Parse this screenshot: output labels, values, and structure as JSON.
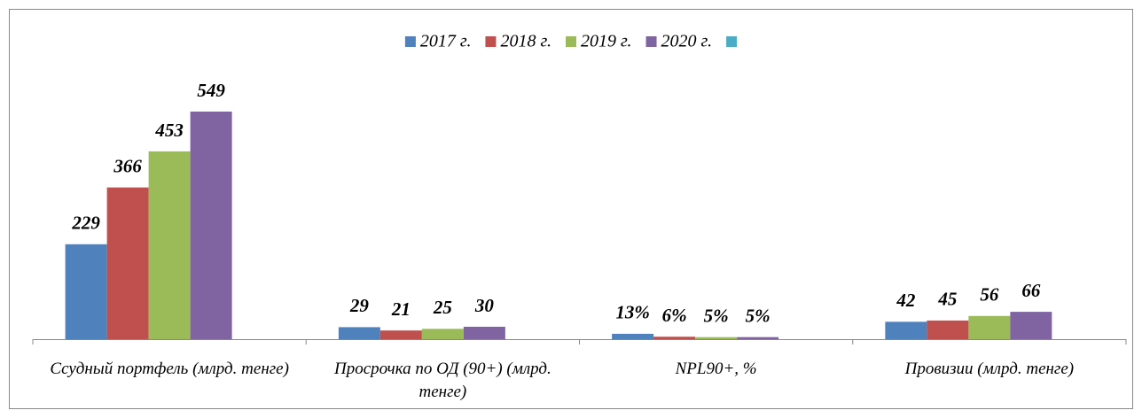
{
  "chart_data": {
    "type": "bar",
    "categories": [
      "Ссудный портфель (млрд. тенге)",
      "Просрочка по ОД (90+) (млрд. тенге)",
      "NPL90+, %",
      "Провизии (млрд. тенге)"
    ],
    "series": [
      {
        "name": "2017 г.",
        "color": "#4f81bd",
        "values": [
          229,
          29,
          13,
          42
        ],
        "value_labels": [
          "229",
          "29",
          "13%",
          "42"
        ]
      },
      {
        "name": "2018 г.",
        "color": "#c0504d",
        "values": [
          366,
          21,
          6,
          45
        ],
        "value_labels": [
          "366",
          "21",
          "6%",
          "45"
        ]
      },
      {
        "name": "2019 г.",
        "color": "#9bbb59",
        "values": [
          453,
          25,
          5,
          56
        ],
        "value_labels": [
          "453",
          "25",
          "5%",
          "56"
        ]
      },
      {
        "name": "2020 г.",
        "color": "#8064a2",
        "values": [
          549,
          30,
          5,
          66
        ],
        "value_labels": [
          "549",
          "30",
          "5%",
          "66"
        ]
      },
      {
        "color": "#4bacc6",
        "values": [
          null,
          null,
          null,
          null
        ]
      }
    ],
    "legend": "top"
  }
}
